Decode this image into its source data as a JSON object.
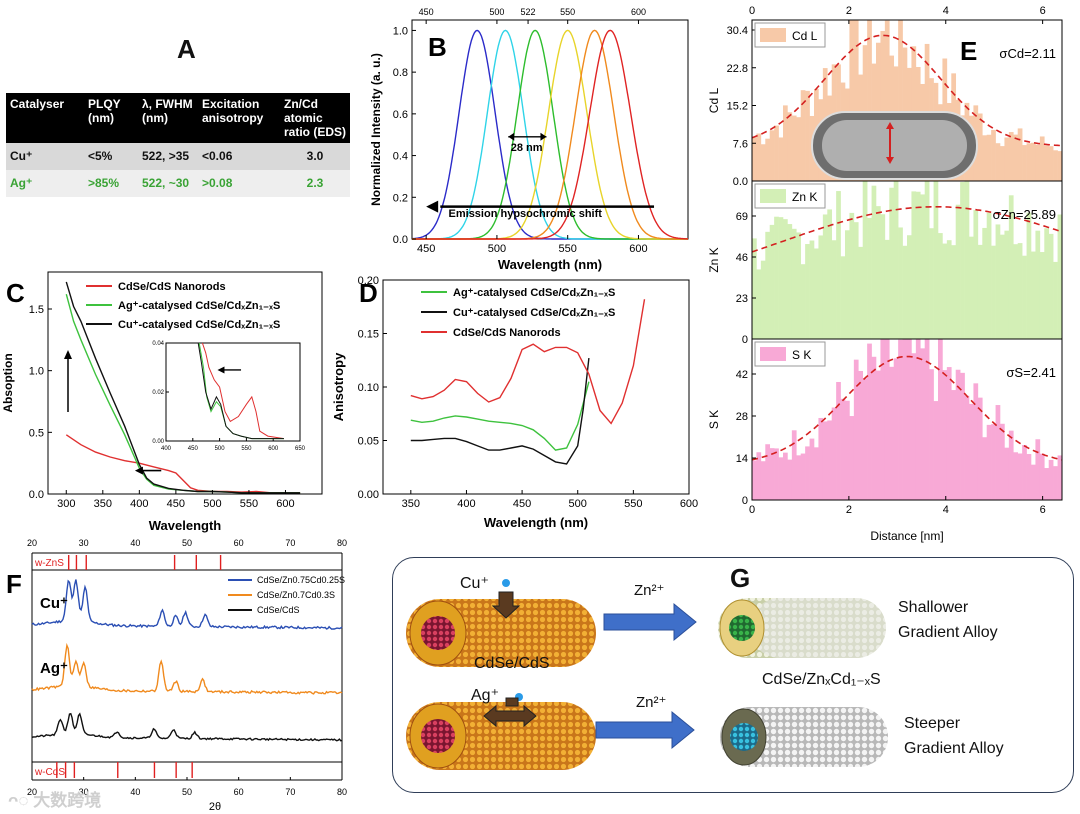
{
  "panel_labels": {
    "a": "A",
    "b": "B",
    "c": "C",
    "d": "D",
    "e": "E",
    "f": "F",
    "g": "G"
  },
  "table": {
    "headers": [
      "Catalyser",
      "PLQY (nm)",
      "λ, FWHM (nm)",
      "Excitation anisotropy",
      "Zn/Cd atomic ratio (EDS)"
    ],
    "rows": [
      [
        "Cu⁺",
        "<5%",
        "522, >35",
        "<0.06",
        "3.0"
      ],
      [
        "Ag⁺",
        ">85%",
        "522, ~30",
        ">0.08",
        "2.3"
      ]
    ]
  },
  "chart_data": [
    {
      "id": "B",
      "type": "line",
      "xlabel": "Wavelength (nm)",
      "ylabel": "Normalized Intensity (a. u.)",
      "xlim": [
        440,
        635
      ],
      "ylim": [
        0,
        1.05
      ],
      "xticks": [
        450,
        500,
        550,
        600
      ],
      "yticks": [
        0.0,
        0.2,
        0.4,
        0.6,
        0.8,
        1.0
      ],
      "top_ticks": [
        450,
        500,
        522,
        550,
        600
      ],
      "annotations": [
        "28 nm",
        "Emission hypsochromic shift"
      ],
      "series": [
        {
          "peak": 486,
          "fwhm": 30,
          "color": "#2b2bc9"
        },
        {
          "peak": 506,
          "fwhm": 30,
          "color": "#2fd4e8"
        },
        {
          "peak": 527,
          "fwhm": 30,
          "color": "#2dbd2d"
        },
        {
          "peak": 550,
          "fwhm": 32,
          "color": "#e8d42a"
        },
        {
          "peak": 569,
          "fwhm": 32,
          "color": "#f08a1e"
        },
        {
          "peak": 580,
          "fwhm": 34,
          "color": "#e02424"
        }
      ]
    },
    {
      "id": "C",
      "type": "line",
      "xlabel": "Wavelength",
      "ylabel": "Absoption",
      "xlim": [
        275,
        650
      ],
      "ylim": [
        0,
        1.8
      ],
      "xticks": [
        300,
        350,
        400,
        450,
        500,
        550,
        600
      ],
      "yticks": [
        0.0,
        0.5,
        1.0,
        1.5
      ],
      "inset": {
        "xticks": [
          400,
          450,
          500,
          550,
          600,
          650
        ],
        "yticks": [
          0.0,
          0.02,
          0.04
        ]
      },
      "series": [
        {
          "name": "CdSe/CdS Nanorods",
          "color": "#e03030",
          "x": [
            300,
            320,
            340,
            360,
            380,
            400,
            420,
            440,
            450,
            460,
            470,
            480,
            500,
            520,
            540,
            560,
            580,
            600,
            620
          ],
          "y": [
            0.48,
            0.4,
            0.34,
            0.3,
            0.27,
            0.25,
            0.22,
            0.19,
            0.17,
            0.11,
            0.05,
            0.03,
            0.02,
            0.02,
            0.015,
            0.02,
            0.01,
            0.01,
            0.01
          ]
        },
        {
          "name": "Ag⁺-catalysed CdSe/CdₓZn₁₋ₓS",
          "color": "#3ec23e",
          "x": [
            300,
            310,
            320,
            340,
            360,
            380,
            400,
            410,
            420,
            440,
            460,
            480,
            500,
            520,
            540,
            560,
            580,
            600,
            620
          ],
          "y": [
            1.62,
            1.4,
            1.25,
            0.97,
            0.72,
            0.48,
            0.21,
            0.12,
            0.07,
            0.04,
            0.03,
            0.02,
            0.02,
            0.015,
            0.01,
            0.01,
            0.01,
            0.01,
            0.01
          ]
        },
        {
          "name": "Cu⁺-catalysed CdSe/CdₓZn₁₋ₓS",
          "color": "#111111",
          "x": [
            300,
            310,
            320,
            340,
            360,
            380,
            400,
            410,
            420,
            440,
            460,
            480,
            500,
            520,
            540,
            560,
            580,
            600,
            620
          ],
          "y": [
            1.72,
            1.52,
            1.4,
            1.1,
            0.82,
            0.55,
            0.24,
            0.13,
            0.08,
            0.045,
            0.03,
            0.02,
            0.02,
            0.015,
            0.01,
            0.01,
            0.01,
            0.01,
            0.01
          ]
        }
      ]
    },
    {
      "id": "D",
      "type": "line",
      "xlabel": "Wavelength (nm)",
      "ylabel": "Anisotropy",
      "xlim": [
        325,
        600
      ],
      "ylim": [
        0,
        0.2
      ],
      "xticks": [
        350,
        400,
        450,
        500,
        550,
        600
      ],
      "yticks": [
        0.0,
        0.05,
        0.1,
        0.15,
        0.2
      ],
      "series": [
        {
          "name": "Ag⁺-catalysed CdSe/CdₓZn₁₋ₓS",
          "color": "#3ec23e",
          "x": [
            350,
            360,
            370,
            380,
            390,
            400,
            410,
            420,
            430,
            440,
            450,
            460,
            470,
            480,
            490,
            500,
            510
          ],
          "y": [
            0.069,
            0.067,
            0.068,
            0.071,
            0.073,
            0.072,
            0.07,
            0.068,
            0.067,
            0.066,
            0.064,
            0.06,
            0.052,
            0.041,
            0.043,
            0.065,
            0.105
          ]
        },
        {
          "name": "Cu⁺-catalysed CdSe/CdₓZn₁₋ₓS",
          "color": "#111111",
          "x": [
            350,
            360,
            370,
            380,
            390,
            400,
            410,
            420,
            430,
            440,
            450,
            460,
            470,
            480,
            490,
            500,
            505,
            510
          ],
          "y": [
            0.05,
            0.05,
            0.051,
            0.052,
            0.052,
            0.049,
            0.045,
            0.041,
            0.041,
            0.043,
            0.045,
            0.042,
            0.036,
            0.03,
            0.028,
            0.045,
            0.08,
            0.127
          ]
        },
        {
          "name": "CdSe/CdS Nanorods",
          "color": "#e03030",
          "x": [
            350,
            360,
            370,
            380,
            390,
            400,
            410,
            420,
            430,
            440,
            450,
            460,
            470,
            480,
            490,
            500,
            510,
            520,
            530,
            540,
            550,
            560
          ],
          "y": [
            0.092,
            0.089,
            0.091,
            0.097,
            0.107,
            0.105,
            0.094,
            0.086,
            0.09,
            0.108,
            0.135,
            0.14,
            0.133,
            0.137,
            0.137,
            0.132,
            0.112,
            0.078,
            0.066,
            0.085,
            0.12,
            0.182
          ]
        }
      ]
    },
    {
      "id": "E",
      "type": "bar",
      "xlabel": "Distance [nm]",
      "xlim": [
        0,
        6.4
      ],
      "xticks": [
        0,
        2,
        4,
        6
      ],
      "panels": [
        {
          "name": "Cd L",
          "ylabel": "Cd L",
          "sigma": "σCd=2.11",
          "color": "#f7c9a8",
          "ylim": [
            0,
            30.4
          ],
          "yticks": [
            "30.4",
            "22.8",
            "15.2",
            "7.6",
            "0.0"
          ],
          "center": 2.7,
          "width": 1.2,
          "amp": 21,
          "base": 6.5
        },
        {
          "name": "Zn K",
          "ylabel": "Zn K",
          "sigma": "σZn=25.89",
          "color": "#d3efb6",
          "ylim": [
            0,
            92
          ],
          "yticks": [
            "69",
            "46",
            "23",
            "0"
          ],
          "center": 3.8,
          "width": 3.2,
          "amp": 52,
          "base": 25
        },
        {
          "name": "S K",
          "ylabel": "S K",
          "sigma": "σS=2.41",
          "color": "#f8a9d6",
          "ylim": [
            0,
            46
          ],
          "yticks": [
            "42",
            "28",
            "14",
            "0"
          ],
          "center": 3.2,
          "width": 1.3,
          "amp": 31,
          "base": 10
        }
      ]
    },
    {
      "id": "F",
      "type": "line",
      "xlabel": "2θ",
      "xlim": [
        20,
        80
      ],
      "xticks": [
        20,
        30,
        40,
        50,
        60,
        70,
        80
      ],
      "reference_top": {
        "label": "w-ZnS",
        "positions": [
          27.1,
          28.6,
          30.5,
          47.6,
          51.8,
          56.5
        ]
      },
      "reference_bottom": {
        "label": "w-CdS",
        "positions": [
          24.8,
          26.5,
          28.2,
          36.6,
          43.7,
          47.9,
          51.0
        ]
      },
      "series": [
        {
          "name": "CdSe/Zn0.75Cd0.25S",
          "label": "Cu⁺",
          "color": "#2b4fb4",
          "peaks": [
            [
              27.1,
              1.0
            ],
            [
              28.5,
              1.0
            ],
            [
              30.3,
              0.85
            ],
            [
              45.2,
              0.4
            ],
            [
              47.8,
              0.25
            ],
            [
              49.7,
              0.35
            ],
            [
              53.5,
              0.3
            ]
          ]
        },
        {
          "name": "CdSe/Zn0.7Cd0.3S",
          "label": "Ag⁺",
          "color": "#f08a1e",
          "peaks": [
            [
              26.8,
              1.0
            ],
            [
              28.5,
              0.6
            ],
            [
              30.0,
              0.6
            ],
            [
              45.0,
              0.75
            ],
            [
              47.8,
              0.25
            ],
            [
              53.0,
              0.3
            ]
          ]
        },
        {
          "name": "CdSe/CdS",
          "color": "#111111",
          "peaks": [
            [
              25.5,
              0.5
            ],
            [
              27.4,
              0.7
            ],
            [
              29.2,
              0.65
            ],
            [
              36.5,
              0.2
            ],
            [
              43.6,
              0.3
            ],
            [
              47.4,
              0.3
            ],
            [
              51.5,
              0.2
            ]
          ]
        }
      ]
    }
  ],
  "g": {
    "cu_ion": "Cu⁺",
    "ag_ion": "Ag⁺",
    "zn_arrow_top": "Zn²⁺",
    "zn_arrow_bottom": "Zn²⁺",
    "core_label": "CdSe/CdS",
    "alloy_label": "CdSe/ZnₓCd₁₋ₓS",
    "shallow_1": "Shallower",
    "shallow_2": "Gradient Alloy",
    "steep_1": "Steeper",
    "steep_2": "Gradient Alloy"
  },
  "watermark": "大数跨境",
  "colors": {
    "arrow_blue": "#3f6fc9",
    "ion_blue": "#2a9be8",
    "rod_orange": "#d98a1c"
  }
}
